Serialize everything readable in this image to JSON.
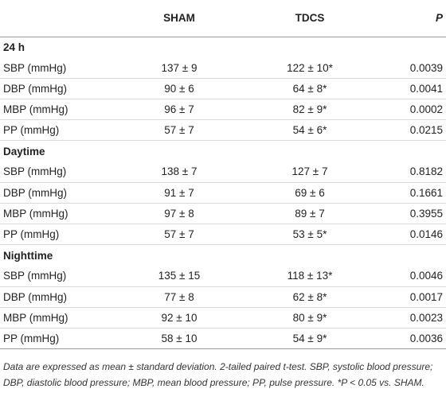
{
  "header": {
    "col_label": "",
    "col_sham": "SHAM",
    "col_tdcs": "TDCS",
    "col_p": "P"
  },
  "sections": [
    {
      "title": "24 h",
      "rows": [
        {
          "label": "SBP (mmHg)",
          "sham": "137 ± 9",
          "tdcs": "122 ± 10*",
          "p": "0.0039"
        },
        {
          "label": "DBP (mmHg)",
          "sham": "90 ± 6",
          "tdcs": "64 ± 8*",
          "p": "0.0041"
        },
        {
          "label": "MBP (mmHg)",
          "sham": "96 ± 7",
          "tdcs": "82 ± 9*",
          "p": "0.0002"
        },
        {
          "label": "PP (mmHg)",
          "sham": "57 ± 7",
          "tdcs": "54 ± 6*",
          "p": "0.0215"
        }
      ]
    },
    {
      "title": "Daytime",
      "rows": [
        {
          "label": "SBP (mmHg)",
          "sham": "138 ± 7",
          "tdcs": "127 ± 7",
          "p": "0.8182"
        },
        {
          "label": "DBP (mmHg)",
          "sham": "91 ± 7",
          "tdcs": "69 ± 6",
          "p": "0.1661"
        },
        {
          "label": "MBP (mmHg)",
          "sham": "97 ± 8",
          "tdcs": "89 ± 7",
          "p": "0.3955"
        },
        {
          "label": "PP (mmHg)",
          "sham": "57 ± 7",
          "tdcs": "53 ± 5*",
          "p": "0.0146"
        }
      ]
    },
    {
      "title": "Nighttime",
      "rows": [
        {
          "label": "SBP (mmHg)",
          "sham": "135 ± 15",
          "tdcs": "118 ± 13*",
          "p": "0.0046"
        },
        {
          "label": "DBP (mmHg)",
          "sham": "77 ± 8",
          "tdcs": "62 ± 8*",
          "p": "0.0017"
        },
        {
          "label": "MBP (mmHg)",
          "sham": "92 ± 10",
          "tdcs": "80 ± 9*",
          "p": "0.0023"
        },
        {
          "label": "PP (mmHg)",
          "sham": "58 ± 10",
          "tdcs": "54 ± 9*",
          "p": "0.0036"
        }
      ]
    }
  ],
  "footnote": "Data are expressed as mean ± standard deviation. 2-tailed paired t-test. SBP, systolic blood pressure; DBP, diastolic blood pressure; MBP, mean blood pressure; PP, pulse pressure. *P < 0.05 vs. SHAM."
}
